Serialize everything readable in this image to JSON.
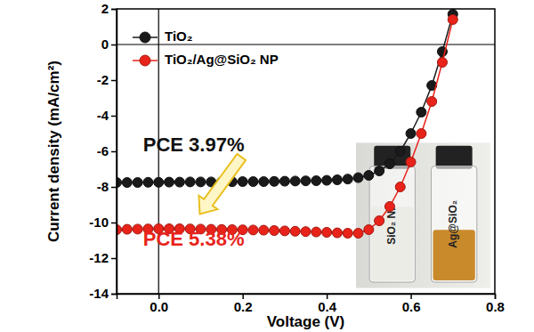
{
  "chart_data": {
    "type": "line",
    "x_label": "Voltage (V)",
    "y_label": "Current density (mA/cm²)",
    "xlim": [
      -0.1,
      0.8
    ],
    "xticks": [
      {
        "value": 0,
        "label": "0.0"
      },
      {
        "value": 0.2,
        "label": "0.2"
      },
      {
        "value": 0.4,
        "label": "0.4"
      },
      {
        "value": 0.6,
        "label": "0.6"
      },
      {
        "value": 0.8,
        "label": "0.8"
      }
    ],
    "ylim": [
      -14,
      2
    ],
    "yticks": [
      -14,
      -12,
      -10,
      -8,
      -6,
      -4,
      -2,
      0,
      2
    ],
    "legend": "upper left",
    "marker": "circle",
    "x": [
      -0.1,
      -0.075,
      -0.05,
      -0.025,
      0,
      0.025,
      0.05,
      0.075,
      0.1,
      0.125,
      0.15,
      0.175,
      0.2,
      0.225,
      0.25,
      0.275,
      0.3,
      0.325,
      0.35,
      0.375,
      0.4,
      0.425,
      0.45,
      0.475,
      0.5,
      0.525,
      0.55,
      0.575,
      0.6,
      0.625,
      0.65,
      0.675,
      0.7
    ],
    "series": [
      {
        "name": "TiO₂",
        "color": "#1a1a1a",
        "values": [
          -7.75,
          -7.75,
          -7.75,
          -7.74,
          -7.74,
          -7.73,
          -7.73,
          -7.72,
          -7.72,
          -7.72,
          -7.71,
          -7.71,
          -7.7,
          -7.7,
          -7.7,
          -7.69,
          -7.68,
          -7.67,
          -7.66,
          -7.65,
          -7.63,
          -7.6,
          -7.56,
          -7.48,
          -7.35,
          -7.1,
          -6.7,
          -6.0,
          -5.0,
          -3.8,
          -2.3,
          -0.4,
          1.7
        ]
      },
      {
        "name": "TiO₂/Ag@SiO₂ NP",
        "color": "#e8231a",
        "values": [
          -10.4,
          -10.38,
          -10.37,
          -10.36,
          -10.35,
          -10.35,
          -10.35,
          -10.36,
          -10.37,
          -10.38,
          -10.39,
          -10.4,
          -10.41,
          -10.42,
          -10.43,
          -10.45,
          -10.47,
          -10.49,
          -10.51,
          -10.53,
          -10.55,
          -10.58,
          -10.6,
          -10.6,
          -10.4,
          -9.9,
          -9.1,
          -8.0,
          -6.6,
          -5.0,
          -3.2,
          -1.0,
          1.4
        ]
      }
    ],
    "annotations": [
      {
        "text": "PCE 3.97%",
        "color": "#111111"
      },
      {
        "text": "PCE 5.38%",
        "color": "#e8231a"
      }
    ],
    "inset_labels": [
      "SiO₂ NP",
      "Ag@SiO₂"
    ]
  }
}
